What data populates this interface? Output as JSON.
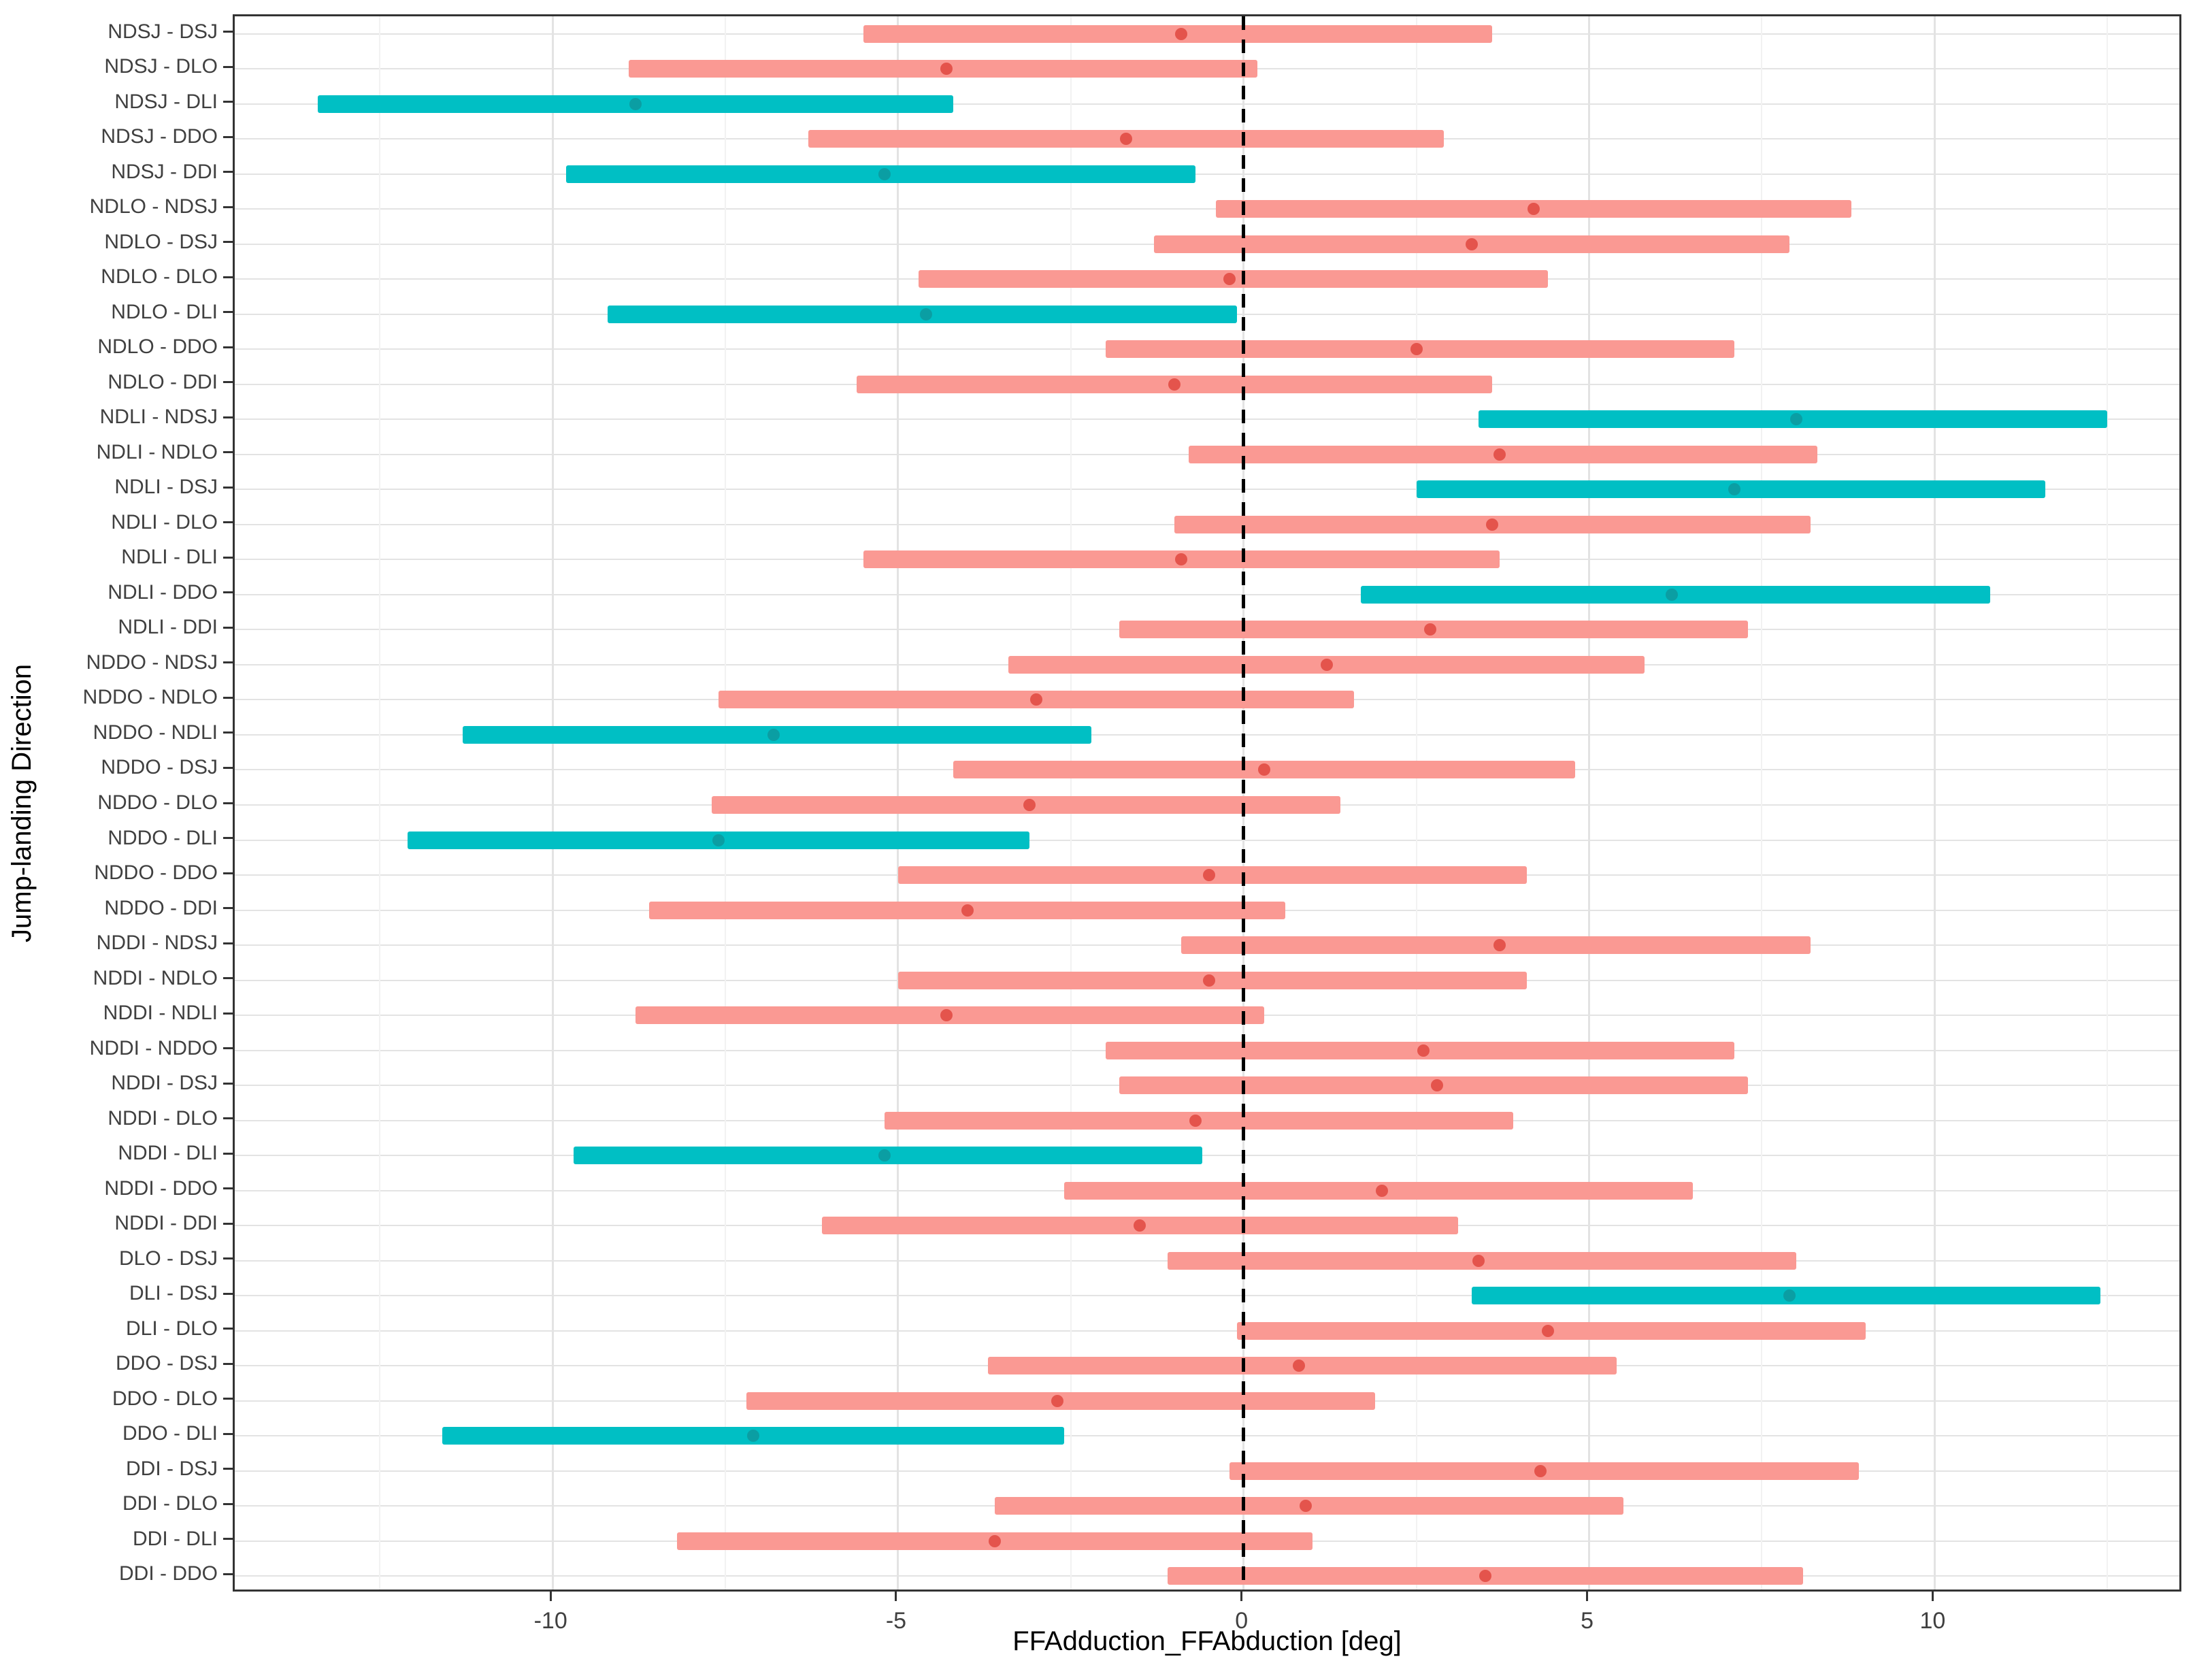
{
  "chart_data": {
    "type": "interval",
    "title": "",
    "xlabel": "FFAdduction_FFAbduction [deg]",
    "ylabel": "Jump-landing Direction",
    "xlim": [
      -14.6,
      13.6
    ],
    "x_major_ticks": [
      -10,
      -5,
      0,
      5,
      10
    ],
    "x_minor_ticks": [
      -12.5,
      -7.5,
      -2.5,
      2.5,
      7.5,
      12.5
    ],
    "reference_line_x": 0,
    "grid": "on",
    "legend": "none",
    "colors": {
      "significant_bar": "#00BFC4",
      "significant_point": "#0B9EA3",
      "nonsignificant_bar": "#FA9993",
      "nonsignificant_point": "#E4544C",
      "reference_line": "#000000",
      "panel_border": "#333333",
      "major_grid": "#E3E3E3",
      "minor_grid": "#F2F2F2"
    },
    "rows": [
      {
        "label": "NDSJ - DSJ",
        "low": -5.5,
        "mid": -0.9,
        "high": 3.6,
        "significant": false
      },
      {
        "label": "NDSJ - DLO",
        "low": -8.9,
        "mid": -4.3,
        "high": 0.2,
        "significant": false
      },
      {
        "label": "NDSJ - DLI",
        "low": -13.4,
        "mid": -8.8,
        "high": -4.2,
        "significant": true
      },
      {
        "label": "NDSJ - DDO",
        "low": -6.3,
        "mid": -1.7,
        "high": 2.9,
        "significant": false
      },
      {
        "label": "NDSJ - DDI",
        "low": -9.8,
        "mid": -5.2,
        "high": -0.7,
        "significant": true
      },
      {
        "label": "NDLO - NDSJ",
        "low": -0.4,
        "mid": 4.2,
        "high": 8.8,
        "significant": false
      },
      {
        "label": "NDLO - DSJ",
        "low": -1.3,
        "mid": 3.3,
        "high": 7.9,
        "significant": false
      },
      {
        "label": "NDLO - DLO",
        "low": -4.7,
        "mid": -0.2,
        "high": 4.4,
        "significant": false
      },
      {
        "label": "NDLO - DLI",
        "low": -9.2,
        "mid": -4.6,
        "high": -0.1,
        "significant": true
      },
      {
        "label": "NDLO - DDO",
        "low": -2.0,
        "mid": 2.5,
        "high": 7.1,
        "significant": false
      },
      {
        "label": "NDLO - DDI",
        "low": -5.6,
        "mid": -1.0,
        "high": 3.6,
        "significant": false
      },
      {
        "label": "NDLI - NDSJ",
        "low": 3.4,
        "mid": 8.0,
        "high": 12.5,
        "significant": true
      },
      {
        "label": "NDLI - NDLO",
        "low": -0.8,
        "mid": 3.7,
        "high": 8.3,
        "significant": false
      },
      {
        "label": "NDLI - DSJ",
        "low": 2.5,
        "mid": 7.1,
        "high": 11.6,
        "significant": true
      },
      {
        "label": "NDLI - DLO",
        "low": -1.0,
        "mid": 3.6,
        "high": 8.2,
        "significant": false
      },
      {
        "label": "NDLI - DLI",
        "low": -5.5,
        "mid": -0.9,
        "high": 3.7,
        "significant": false
      },
      {
        "label": "NDLI - DDO",
        "low": 1.7,
        "mid": 6.2,
        "high": 10.8,
        "significant": true
      },
      {
        "label": "NDLI - DDI",
        "low": -1.8,
        "mid": 2.7,
        "high": 7.3,
        "significant": false
      },
      {
        "label": "NDDO - NDSJ",
        "low": -3.4,
        "mid": 1.2,
        "high": 5.8,
        "significant": false
      },
      {
        "label": "NDDO - NDLO",
        "low": -7.6,
        "mid": -3.0,
        "high": 1.6,
        "significant": false
      },
      {
        "label": "NDDO - NDLI",
        "low": -11.3,
        "mid": -6.8,
        "high": -2.2,
        "significant": true
      },
      {
        "label": "NDDO - DSJ",
        "low": -4.2,
        "mid": 0.3,
        "high": 4.8,
        "significant": false
      },
      {
        "label": "NDDO - DLO",
        "low": -7.7,
        "mid": -3.1,
        "high": 1.4,
        "significant": false
      },
      {
        "label": "NDDO - DLI",
        "low": -12.1,
        "mid": -7.6,
        "high": -3.1,
        "significant": true
      },
      {
        "label": "NDDO - DDO",
        "low": -5.0,
        "mid": -0.5,
        "high": 4.1,
        "significant": false
      },
      {
        "label": "NDDO - DDI",
        "low": -8.6,
        "mid": -4.0,
        "high": 0.6,
        "significant": false
      },
      {
        "label": "NDDI - NDSJ",
        "low": -0.9,
        "mid": 3.7,
        "high": 8.2,
        "significant": false
      },
      {
        "label": "NDDI - NDLO",
        "low": -5.0,
        "mid": -0.5,
        "high": 4.1,
        "significant": false
      },
      {
        "label": "NDDI - NDLI",
        "low": -8.8,
        "mid": -4.3,
        "high": 0.3,
        "significant": false
      },
      {
        "label": "NDDI - NDDO",
        "low": -2.0,
        "mid": 2.6,
        "high": 7.1,
        "significant": false
      },
      {
        "label": "NDDI - DSJ",
        "low": -1.8,
        "mid": 2.8,
        "high": 7.3,
        "significant": false
      },
      {
        "label": "NDDI - DLO",
        "low": -5.2,
        "mid": -0.7,
        "high": 3.9,
        "significant": false
      },
      {
        "label": "NDDI - DLI",
        "low": -9.7,
        "mid": -5.2,
        "high": -0.6,
        "significant": true
      },
      {
        "label": "NDDI - DDO",
        "low": -2.6,
        "mid": 2.0,
        "high": 6.5,
        "significant": false
      },
      {
        "label": "NDDI - DDI",
        "low": -6.1,
        "mid": -1.5,
        "high": 3.1,
        "significant": false
      },
      {
        "label": "DLO - DSJ",
        "low": -1.1,
        "mid": 3.4,
        "high": 8.0,
        "significant": false
      },
      {
        "label": "DLI - DSJ",
        "low": 3.3,
        "mid": 7.9,
        "high": 12.4,
        "significant": true
      },
      {
        "label": "DLI - DLO",
        "low": -0.1,
        "mid": 4.4,
        "high": 9.0,
        "significant": false
      },
      {
        "label": "DDO - DSJ",
        "low": -3.7,
        "mid": 0.8,
        "high": 5.4,
        "significant": false
      },
      {
        "label": "DDO - DLO",
        "low": -7.2,
        "mid": -2.7,
        "high": 1.9,
        "significant": false
      },
      {
        "label": "DDO - DLI",
        "low": -11.6,
        "mid": -7.1,
        "high": -2.6,
        "significant": true
      },
      {
        "label": "DDI - DSJ",
        "low": -0.2,
        "mid": 4.3,
        "high": 8.9,
        "significant": false
      },
      {
        "label": "DDI - DLO",
        "low": -3.6,
        "mid": 0.9,
        "high": 5.5,
        "significant": false
      },
      {
        "label": "DDI - DLI",
        "low": -8.2,
        "mid": -3.6,
        "high": 1.0,
        "significant": false
      },
      {
        "label": "DDI - DDO",
        "low": -1.1,
        "mid": 3.5,
        "high": 8.1,
        "significant": false
      }
    ]
  }
}
